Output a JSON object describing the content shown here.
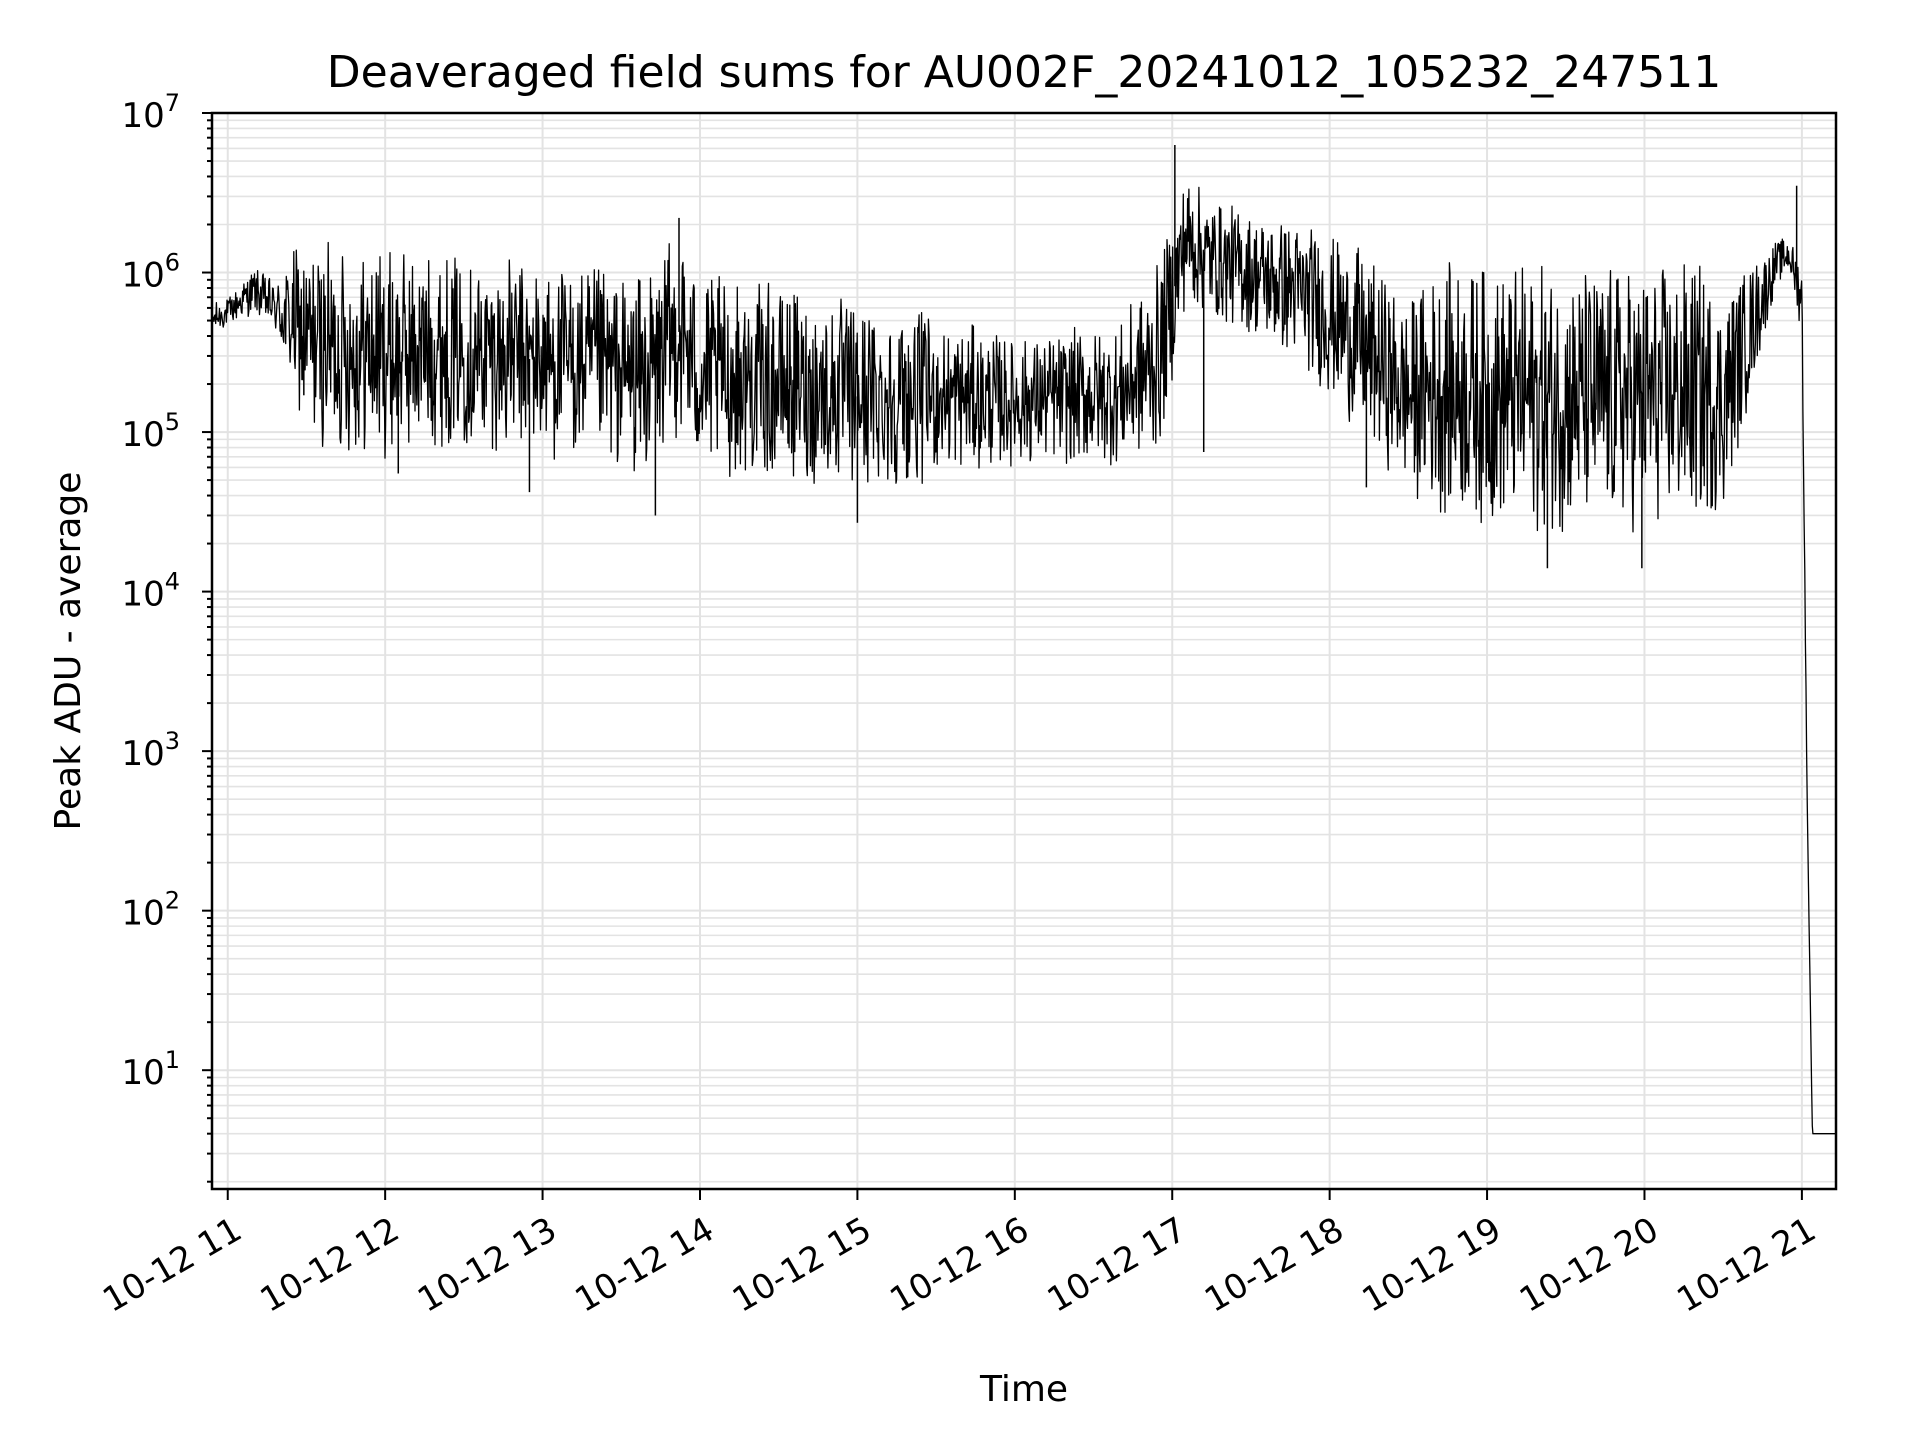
{
  "chart_data": {
    "type": "line",
    "title": "Deaveraged field sums for AU002F_20241012_105232_247511",
    "xlabel": "Time",
    "ylabel": "Peak ADU - average",
    "y_scale": "log",
    "ylim": [
      1.8,
      10000000
    ],
    "xlim": [
      "2024-10-12T10:54",
      "2024-10-12T21:13"
    ],
    "grid": true,
    "legend": "none",
    "line_color": "#000000",
    "grid_color": "#e3e3e3",
    "x_ticks": [
      {
        "value": "2024-10-12T11:00",
        "label": "10-12 11"
      },
      {
        "value": "2024-10-12T12:00",
        "label": "10-12 12"
      },
      {
        "value": "2024-10-12T13:00",
        "label": "10-12 13"
      },
      {
        "value": "2024-10-12T14:00",
        "label": "10-12 14"
      },
      {
        "value": "2024-10-12T15:00",
        "label": "10-12 15"
      },
      {
        "value": "2024-10-12T16:00",
        "label": "10-12 16"
      },
      {
        "value": "2024-10-12T17:00",
        "label": "10-12 17"
      },
      {
        "value": "2024-10-12T18:00",
        "label": "10-12 18"
      },
      {
        "value": "2024-10-12T19:00",
        "label": "10-12 19"
      },
      {
        "value": "2024-10-12T20:00",
        "label": "10-12 20"
      },
      {
        "value": "2024-10-12T21:00",
        "label": "10-12 21"
      }
    ],
    "y_ticks": [
      {
        "value": 10,
        "base": "10",
        "exp": "1"
      },
      {
        "value": 100,
        "base": "10",
        "exp": "2"
      },
      {
        "value": 1000,
        "base": "10",
        "exp": "3"
      },
      {
        "value": 10000,
        "base": "10",
        "exp": "4"
      },
      {
        "value": 100000,
        "base": "10",
        "exp": "5"
      },
      {
        "value": 1000000,
        "base": "10",
        "exp": "6"
      },
      {
        "value": 10000000,
        "base": "10",
        "exp": "7"
      }
    ],
    "series": [
      {
        "envelope": {
          "x": [
            "2024-10-12T10:54",
            "2024-10-12T11:00",
            "2024-10-12T11:10",
            "2024-10-12T11:18",
            "2024-10-12T11:25",
            "2024-10-12T11:30",
            "2024-10-12T11:40",
            "2024-10-12T12:00",
            "2024-10-12T12:20",
            "2024-10-12T12:40",
            "2024-10-12T13:00",
            "2024-10-12T13:20",
            "2024-10-12T13:40",
            "2024-10-12T13:52",
            "2024-10-12T14:00",
            "2024-10-12T14:20",
            "2024-10-12T14:40",
            "2024-10-12T15:00",
            "2024-10-12T15:20",
            "2024-10-12T15:40",
            "2024-10-12T16:00",
            "2024-10-12T16:20",
            "2024-10-12T16:40",
            "2024-10-12T16:55",
            "2024-10-12T17:05",
            "2024-10-12T17:15",
            "2024-10-12T17:30",
            "2024-10-12T17:50",
            "2024-10-12T18:10",
            "2024-10-12T18:30",
            "2024-10-12T18:40",
            "2024-10-12T19:00",
            "2024-10-12T19:20",
            "2024-10-12T19:40",
            "2024-10-12T20:00",
            "2024-10-12T20:20",
            "2024-10-12T20:30",
            "2024-10-12T20:40",
            "2024-10-12T20:50",
            "2024-10-12T20:55",
            "2024-10-12T21:00",
            "2024-10-12T21:02",
            "2024-10-12T21:04",
            "2024-10-12T21:13"
          ],
          "low": [
            400000,
            450000,
            550000,
            400000,
            150000,
            90000,
            70000,
            65000,
            80000,
            75000,
            65000,
            60000,
            50000,
            90000,
            50000,
            50000,
            45000,
            40000,
            45000,
            55000,
            60000,
            60000,
            60000,
            70000,
            600000,
            500000,
            400000,
            250000,
            100000,
            40000,
            30000,
            25000,
            22000,
            22000,
            22000,
            25000,
            30000,
            150000,
            800000,
            1000000,
            400000,
            500,
            4,
            4
          ],
          "high": [
            650000,
            700000,
            1100000,
            900000,
            1500000,
            1600000,
            1600000,
            1500000,
            1400000,
            1300000,
            1200000,
            1100000,
            1000000,
            2000000,
            1000000,
            900000,
            800000,
            700000,
            600000,
            500000,
            400000,
            450000,
            500000,
            1200000,
            4500000,
            3000000,
            2500000,
            2200000,
            1500000,
            700000,
            1200000,
            1200000,
            1200000,
            1200000,
            1200000,
            1300000,
            800000,
            1200000,
            1600000,
            1700000,
            1200000,
            500,
            4,
            4
          ]
        },
        "spikes": [
          {
            "x": "2024-10-12T11:29",
            "y": 170000
          },
          {
            "x": "2024-10-12T12:05",
            "y": 55000
          },
          {
            "x": "2024-10-12T12:55",
            "y": 42000
          },
          {
            "x": "2024-10-12T13:52",
            "y": 2200000
          },
          {
            "x": "2024-10-12T13:43",
            "y": 30000
          },
          {
            "x": "2024-10-12T15:00",
            "y": 27000
          },
          {
            "x": "2024-10-12T17:01",
            "y": 6300000
          },
          {
            "x": "2024-10-12T17:12",
            "y": 75000
          },
          {
            "x": "2024-10-12T18:14",
            "y": 45000
          },
          {
            "x": "2024-10-12T19:23",
            "y": 14000
          },
          {
            "x": "2024-10-12T19:59",
            "y": 14000
          },
          {
            "x": "2024-10-12T20:58",
            "y": 3500000
          }
        ]
      }
    ]
  }
}
